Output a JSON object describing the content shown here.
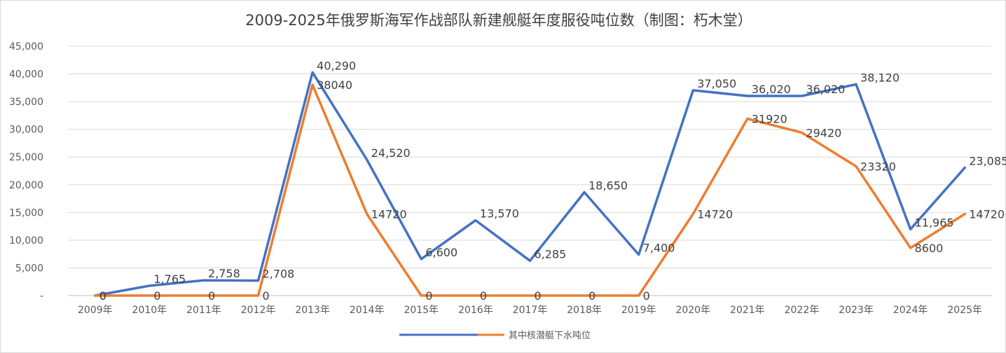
{
  "chart_data": {
    "type": "line",
    "title": "2009-2025年俄罗斯海军作战部队新建舰艇年度服役吨位数（制图：朽木堂）",
    "categories": [
      "2009年",
      "2010年",
      "2011年",
      "2012年",
      "2013年",
      "2014年",
      "2015年",
      "2016年",
      "2017年",
      "2018年",
      "2019年",
      "2020年",
      "2021年",
      "2022年",
      "2023年",
      "2024年",
      "2025年"
    ],
    "ylim": [
      0,
      45000
    ],
    "yticks": [
      "-",
      "5,000",
      "10,000",
      "15,000",
      "20,000",
      "25,000",
      "30,000",
      "35,000",
      "40,000",
      "45,000"
    ],
    "grid": true,
    "legend_position": "bottom",
    "series": [
      {
        "name": "",
        "color": "#4472C4",
        "values": [
          0,
          1765,
          2758,
          2708,
          40290,
          24520,
          6600,
          13570,
          6285,
          18650,
          7400,
          37050,
          36020,
          36020,
          38120,
          11965,
          23085
        ],
        "labels": [
          "0",
          "1,765",
          "2,758",
          "2,708",
          "40,290",
          "24,520",
          "6,600",
          "13,570",
          "6,285",
          "18,650",
          "7,400",
          "37,050",
          "36,020",
          "36,020",
          "38,120",
          "11,965",
          "23,085"
        ]
      },
      {
        "name": "其中核潜艇下水吨位",
        "color": "#ED7D31",
        "values": [
          0,
          0,
          0,
          0,
          38040,
          14720,
          0,
          0,
          0,
          0,
          0,
          14720,
          31920,
          29420,
          23320,
          8600,
          14720
        ],
        "labels": [
          "0",
          "0",
          "0",
          "0",
          "38040",
          "14720",
          "0",
          "0",
          "0",
          "0",
          "0",
          "14720",
          "31920",
          "29420",
          "23320",
          "8600",
          "14720"
        ]
      }
    ]
  }
}
